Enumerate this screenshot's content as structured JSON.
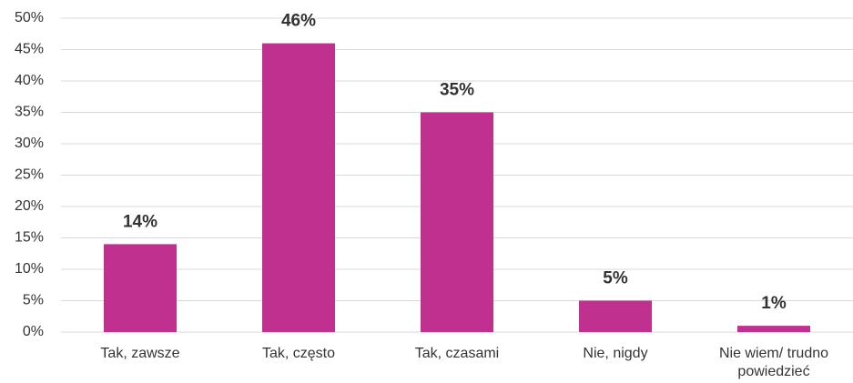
{
  "chart_data": {
    "type": "bar",
    "categories": [
      "Tak, zawsze",
      "Tak, często",
      "Tak, czasami",
      "Nie, nigdy",
      "Nie wiem/ trudno powiedzieć"
    ],
    "values": [
      14,
      46,
      35,
      5,
      1
    ],
    "value_labels": [
      "14%",
      "46%",
      "35%",
      "5%",
      "1%"
    ],
    "color": "#c0308f",
    "ylim": [
      0,
      50
    ],
    "yticks": [
      {
        "value": 0,
        "label": "0%"
      },
      {
        "value": 5,
        "label": "5%"
      },
      {
        "value": 10,
        "label": "10%"
      },
      {
        "value": 15,
        "label": "15%"
      },
      {
        "value": 20,
        "label": "20%"
      },
      {
        "value": 25,
        "label": "25%"
      },
      {
        "value": 30,
        "label": "30%"
      },
      {
        "value": 35,
        "label": "35%"
      },
      {
        "value": 40,
        "label": "40%"
      },
      {
        "value": 45,
        "label": "45%"
      },
      {
        "value": 50,
        "label": "50%"
      }
    ],
    "grid": true
  }
}
